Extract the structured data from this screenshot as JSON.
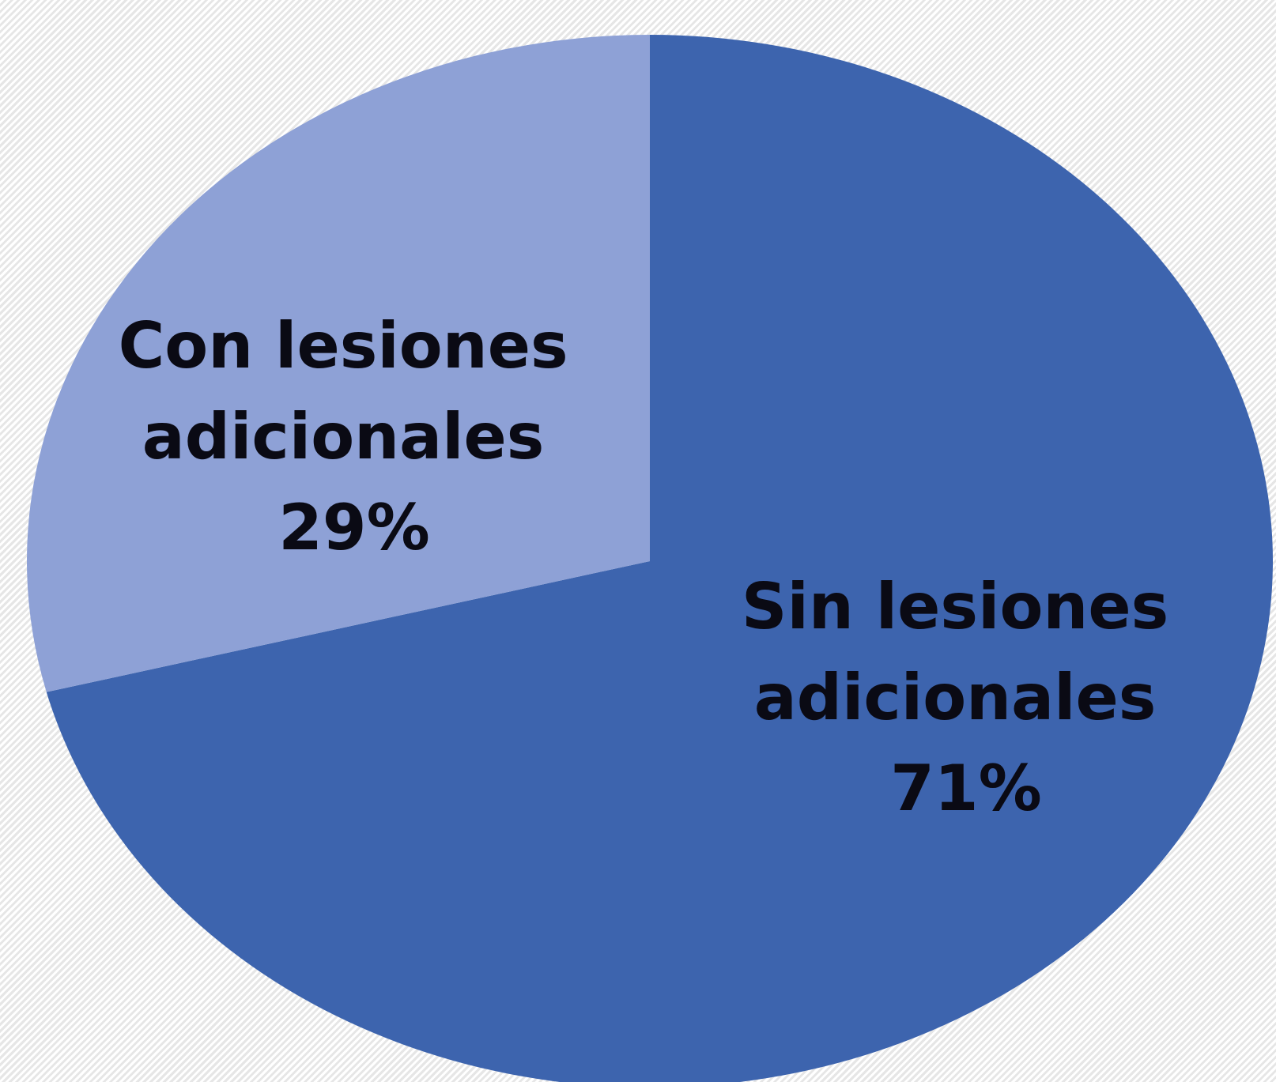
{
  "chart_data": {
    "type": "pie",
    "title": "",
    "slices": [
      {
        "label_lines": [
          "Sin lesiones",
          "adicionales"
        ],
        "percent_label": "71%",
        "value": 71,
        "color": "#3d64ae"
      },
      {
        "label_lines": [
          "Con lesiones",
          "adicionales"
        ],
        "percent_label": "29%",
        "value": 29,
        "color": "#8ea1d6"
      }
    ],
    "start_angle": "12 o'clock",
    "direction": "clockwise",
    "legend": "none"
  }
}
